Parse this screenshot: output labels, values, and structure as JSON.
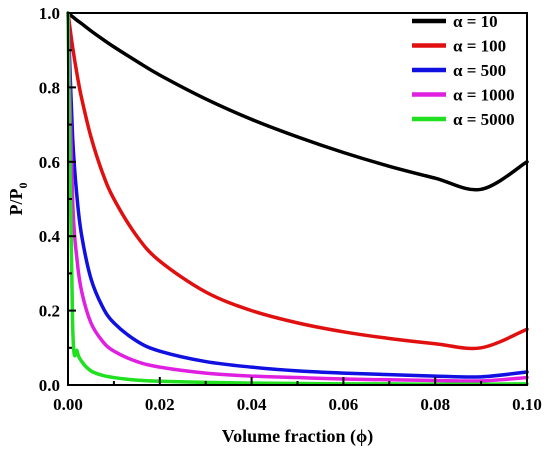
{
  "chart_data": {
    "type": "line",
    "xlabel": "Volume fraction (ϕ)",
    "ylabel_main": "P/P",
    "ylabel_sub": "0",
    "xlim": [
      0,
      0.1
    ],
    "ylim": [
      0,
      1.0
    ],
    "x_ticks": [
      "0.00",
      "0.02",
      "0.04",
      "0.06",
      "0.08",
      "0.10"
    ],
    "y_ticks": [
      "0.0",
      "0.2",
      "0.4",
      "0.6",
      "0.8",
      "1.0"
    ],
    "legend_position": "top-right",
    "grid": false,
    "x": [
      0,
      0.001,
      0.002,
      0.003,
      0.005,
      0.0075,
      0.01,
      0.015,
      0.02,
      0.03,
      0.04,
      0.05,
      0.06,
      0.07,
      0.08,
      0.09,
      0.1
    ],
    "series": [
      {
        "name": "α = 10",
        "color": "#000000",
        "values": [
          1.0,
          0.99,
          0.98,
          0.971,
          0.952,
          0.93,
          0.909,
          0.87,
          0.833,
          0.769,
          0.714,
          0.667,
          0.625,
          0.588,
          0.556,
          0.526,
          0.6
        ]
      },
      {
        "name": "α = 100",
        "color": "#e01010",
        "values": [
          1.0,
          0.909,
          0.833,
          0.769,
          0.667,
          0.571,
          0.5,
          0.4,
          0.333,
          0.25,
          0.2,
          0.167,
          0.143,
          0.125,
          0.111,
          0.1,
          0.15
        ]
      },
      {
        "name": "α = 500",
        "color": "#1010e0",
        "values": [
          1.0,
          0.667,
          0.5,
          0.4,
          0.286,
          0.211,
          0.167,
          0.118,
          0.091,
          0.063,
          0.048,
          0.038,
          0.032,
          0.028,
          0.024,
          0.022,
          0.035
        ]
      },
      {
        "name": "α = 1000",
        "color": "#e020e0",
        "values": [
          1.0,
          0.5,
          0.333,
          0.25,
          0.167,
          0.118,
          0.091,
          0.063,
          0.048,
          0.032,
          0.024,
          0.02,
          0.016,
          0.014,
          0.012,
          0.011,
          0.02
        ]
      },
      {
        "name": "α = 5000",
        "color": "#20e020",
        "values": [
          1.0,
          0.167,
          0.091,
          0.063,
          0.038,
          0.026,
          0.02,
          0.013,
          0.01,
          0.007,
          0.005,
          0.004,
          0.003,
          0.003,
          0.002,
          0.002,
          0.003
        ]
      }
    ]
  }
}
